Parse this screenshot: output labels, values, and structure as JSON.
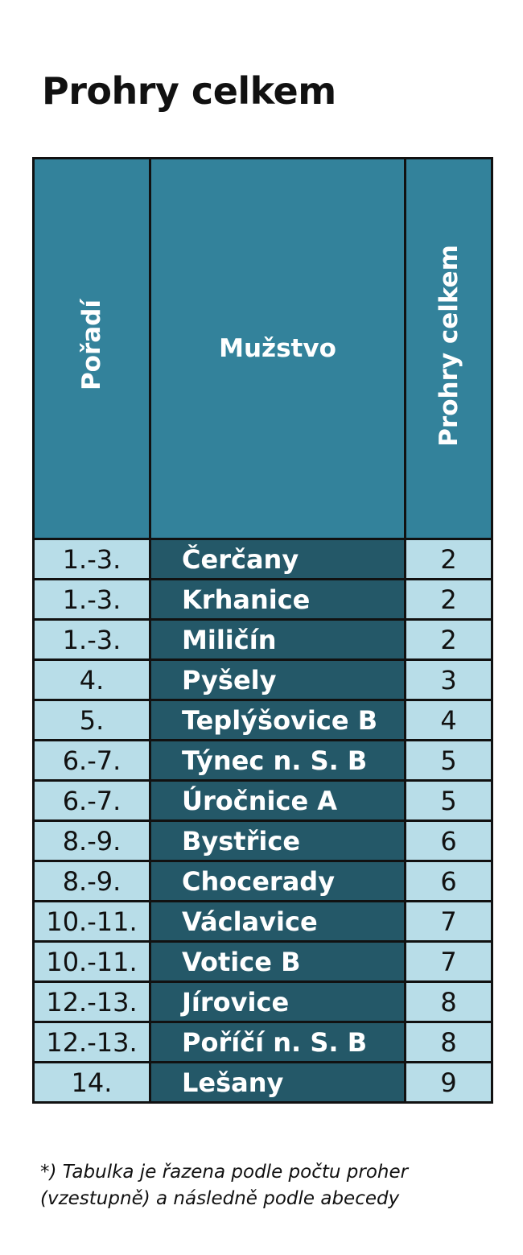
{
  "title": "Prohry celkem",
  "table": {
    "headers": {
      "rank": "Pořadí",
      "team": "Mužstvo",
      "value": "Prohry celkem"
    },
    "rows": [
      {
        "rank": "1.-3.",
        "team": "Čerčany",
        "value": "2"
      },
      {
        "rank": "1.-3.",
        "team": "Krhanice",
        "value": "2"
      },
      {
        "rank": "1.-3.",
        "team": "Miličín",
        "value": "2"
      },
      {
        "rank": "4.",
        "team": "Pyšely",
        "value": "3"
      },
      {
        "rank": "5.",
        "team": "Teplýšovice B",
        "value": "4"
      },
      {
        "rank": "6.-7.",
        "team": "Týnec n. S. B",
        "value": "5"
      },
      {
        "rank": "6.-7.",
        "team": "Úročnice A",
        "value": "5"
      },
      {
        "rank": "8.-9.",
        "team": "Bystřice",
        "value": "6"
      },
      {
        "rank": "8.-9.",
        "team": "Chocerady",
        "value": "6"
      },
      {
        "rank": "10.-11.",
        "team": "Václavice",
        "value": "7"
      },
      {
        "rank": "10.-11.",
        "team": "Votice B",
        "value": "7"
      },
      {
        "rank": "12.-13.",
        "team": "Jírovice",
        "value": "8"
      },
      {
        "rank": "12.-13.",
        "team": "Poříčí n. S. B",
        "value": "8"
      },
      {
        "rank": "14.",
        "team": "Lešany",
        "value": "9"
      }
    ]
  },
  "footnote": {
    "line1": "*) Tabulka je řazena podle počtu proher",
    "line2": "(vzestupně) a následně podle abecedy"
  },
  "colors": {
    "header_bg": "#33829b",
    "team_bg": "#245868",
    "cell_bg": "#b8dde8",
    "border": "#111111"
  }
}
